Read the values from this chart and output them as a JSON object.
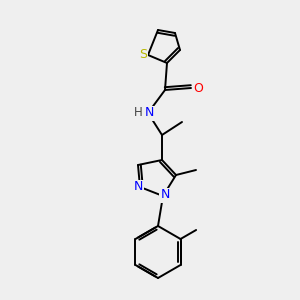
{
  "background_color": "#efefef",
  "bond_color": "#000000",
  "atom_colors": {
    "S": "#b8b800",
    "N": "#0000ff",
    "O": "#ff0000",
    "H": "#444444",
    "C": "#000000"
  },
  "figsize": [
    3.0,
    3.0
  ],
  "dpi": 100,
  "lw": 1.4,
  "fontsize": 8.5
}
